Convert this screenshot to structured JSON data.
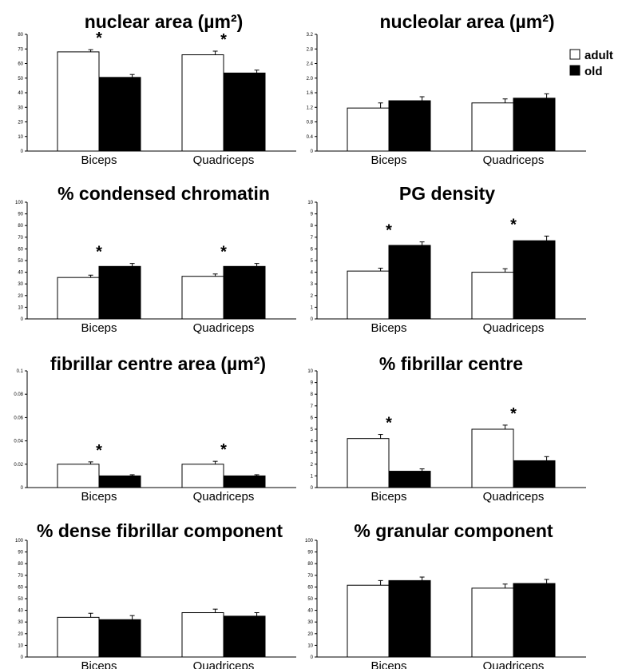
{
  "legend": {
    "entries": [
      {
        "label": "adult",
        "color": "#ffffff"
      },
      {
        "label": "old",
        "color": "#000000"
      }
    ]
  },
  "chart_data": [
    {
      "type": "bar",
      "title": "nuclear area (µm²)",
      "categories": [
        "Biceps",
        "Quadriceps"
      ],
      "series": [
        {
          "name": "adult",
          "values": [
            68,
            66
          ],
          "errors": [
            1.5,
            2.5
          ]
        },
        {
          "name": "old",
          "values": [
            50.5,
            53.5
          ],
          "errors": [
            2,
            2
          ]
        }
      ],
      "ylim": [
        0,
        80
      ],
      "yticks": [
        "0",
        "10",
        "20",
        "30",
        "40",
        "50",
        "60",
        "70",
        "80"
      ],
      "significant": [
        true,
        true
      ],
      "significance_label": "*"
    },
    {
      "type": "bar",
      "title": "nucleolar area (µm²)",
      "categories": [
        "Biceps",
        "Quadriceps"
      ],
      "series": [
        {
          "name": "adult",
          "values": [
            1.18,
            1.32
          ],
          "errors": [
            0.14,
            0.11
          ]
        },
        {
          "name": "old",
          "values": [
            1.38,
            1.45
          ],
          "errors": [
            0.11,
            0.12
          ]
        }
      ],
      "ylim": [
        0,
        3.2
      ],
      "yticks": [
        "0",
        "0.4",
        "0.8",
        "1.2",
        "1.6",
        "2.0",
        "2.4",
        "2.8",
        "3.2"
      ],
      "significant": [
        false,
        false
      ],
      "significance_label": "*"
    },
    {
      "type": "bar",
      "title": "% condensed chromatin",
      "categories": [
        "Biceps",
        "Quadriceps"
      ],
      "series": [
        {
          "name": "adult",
          "values": [
            35.5,
            36.5
          ],
          "errors": [
            2,
            2
          ]
        },
        {
          "name": "old",
          "values": [
            45,
            45
          ],
          "errors": [
            2.5,
            2.5
          ]
        }
      ],
      "ylim": [
        0,
        100
      ],
      "yticks": [
        "0",
        "10",
        "20",
        "30",
        "40",
        "50",
        "60",
        "70",
        "80",
        "90",
        "100"
      ],
      "significant": [
        true,
        true
      ],
      "significance_label": "*"
    },
    {
      "type": "bar",
      "title": "PG density",
      "categories": [
        "Biceps",
        "Quadriceps"
      ],
      "series": [
        {
          "name": "adult",
          "values": [
            4.1,
            4.0
          ],
          "errors": [
            0.25,
            0.3
          ]
        },
        {
          "name": "old",
          "values": [
            6.3,
            6.7
          ],
          "errors": [
            0.3,
            0.4
          ]
        }
      ],
      "ylim": [
        0,
        10
      ],
      "yticks": [
        "0",
        "1",
        "2",
        "3",
        "4",
        "5",
        "6",
        "7",
        "8",
        "9",
        "10"
      ],
      "significant": [
        true,
        true
      ],
      "significance_label": "*"
    },
    {
      "type": "bar",
      "title": "fibrillar centre area (µm²)",
      "categories": [
        "Biceps",
        "Quadriceps"
      ],
      "series": [
        {
          "name": "adult",
          "values": [
            0.02,
            0.02
          ],
          "errors": [
            0.002,
            0.0025
          ]
        },
        {
          "name": "old",
          "values": [
            0.01,
            0.01
          ],
          "errors": [
            0.001,
            0.001
          ]
        }
      ],
      "ylim": [
        0,
        0.1
      ],
      "yticks": [
        "0",
        "0.02",
        "0.04",
        "0.06",
        "0.08",
        "0.1"
      ],
      "significant": [
        true,
        true
      ],
      "significance_label": "*"
    },
    {
      "type": "bar",
      "title": "% fibrillar centre",
      "categories": [
        "Biceps",
        "Quadriceps"
      ],
      "series": [
        {
          "name": "adult",
          "values": [
            4.2,
            5.0
          ],
          "errors": [
            0.35,
            0.35
          ]
        },
        {
          "name": "old",
          "values": [
            1.4,
            2.3
          ],
          "errors": [
            0.2,
            0.35
          ]
        }
      ],
      "ylim": [
        0,
        10
      ],
      "yticks": [
        "0",
        "1",
        "2",
        "3",
        "4",
        "5",
        "6",
        "7",
        "8",
        "9",
        "10"
      ],
      "significant": [
        true,
        true
      ],
      "significance_label": "*"
    },
    {
      "type": "bar",
      "title": "% dense fibrillar component",
      "categories": [
        "Biceps",
        "Quadriceps"
      ],
      "series": [
        {
          "name": "adult",
          "values": [
            34,
            38
          ],
          "errors": [
            3.5,
            3
          ]
        },
        {
          "name": "old",
          "values": [
            32,
            35
          ],
          "errors": [
            3.5,
            3
          ]
        }
      ],
      "ylim": [
        0,
        100
      ],
      "yticks": [
        "0",
        "10",
        "20",
        "30",
        "40",
        "50",
        "60",
        "70",
        "80",
        "90",
        "100"
      ],
      "significant": [
        false,
        false
      ],
      "significance_label": "*"
    },
    {
      "type": "bar",
      "title": "% granular component",
      "categories": [
        "Biceps",
        "Quadriceps"
      ],
      "series": [
        {
          "name": "adult",
          "values": [
            61.5,
            59
          ],
          "errors": [
            4,
            3.5
          ]
        },
        {
          "name": "old",
          "values": [
            65.5,
            63
          ],
          "errors": [
            3,
            3.5
          ]
        }
      ],
      "ylim": [
        0,
        100
      ],
      "yticks": [
        "0",
        "10",
        "20",
        "30",
        "40",
        "50",
        "60",
        "70",
        "80",
        "90",
        "100"
      ],
      "significant": [
        false,
        false
      ],
      "significance_label": "*"
    }
  ]
}
